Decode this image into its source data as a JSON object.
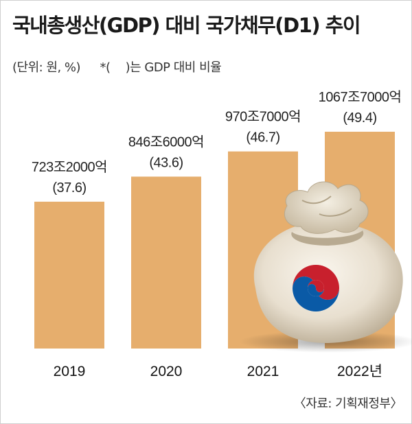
{
  "title": "국내총생산(GDP) 대비 국가채무(D1) 추이",
  "subtitle_unit": "(단위: 원, %)",
  "subtitle_note_open": "*(",
  "subtitle_note_close": ")는 GDP 대비 비율",
  "source": "〈자료: 기획재정부〉",
  "colors": {
    "bar": "#e6ae6d",
    "background": "#ffffff"
  },
  "chart_data": {
    "type": "bar",
    "categories": [
      "2019",
      "2020",
      "2021",
      "2022년"
    ],
    "values": [
      723.2,
      846.6,
      970.7,
      1067.7
    ],
    "value_labels": [
      "723조2000억",
      "846조6000억",
      "970조7000억",
      "1067조7000억"
    ],
    "ratio_labels": [
      "(37.6)",
      "(43.6)",
      "(46.7)",
      "(49.4)"
    ],
    "ratios": [
      37.6,
      43.6,
      46.7,
      49.4
    ],
    "xlabel": "",
    "ylabel": "",
    "grid": false,
    "legend": "none"
  },
  "illustration": "money-bag-with-taegeuk-emblem"
}
